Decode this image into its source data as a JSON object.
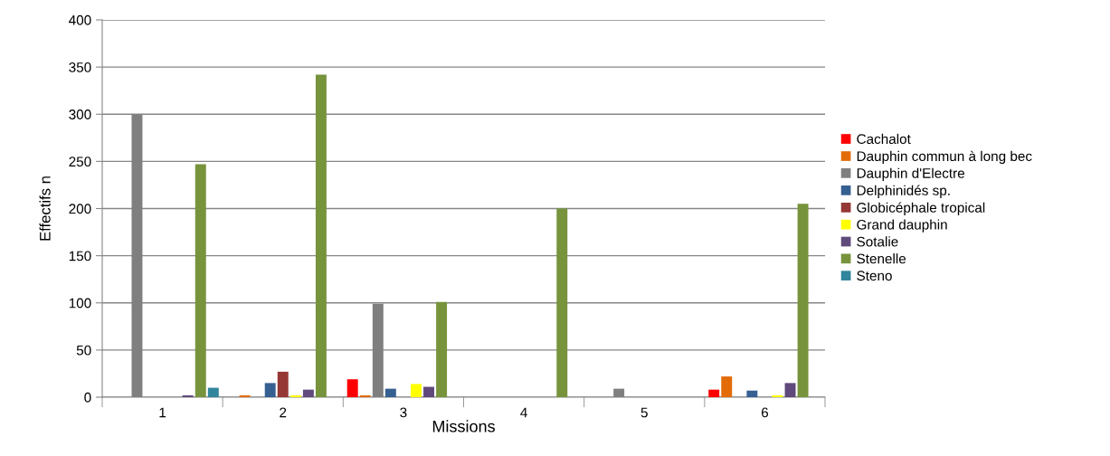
{
  "chart_data": {
    "type": "bar",
    "xlabel": "Missions",
    "ylabel": "Effectifs n",
    "categories": [
      "1",
      "2",
      "3",
      "4",
      "5",
      "6"
    ],
    "series": [
      {
        "name": "Cachalot",
        "color": "#ff0000",
        "values": [
          0,
          0,
          19,
          0,
          0,
          8
        ]
      },
      {
        "name": "Dauphin commun à long bec",
        "color": "#e36c09",
        "values": [
          0,
          2,
          2,
          0,
          0,
          22
        ]
      },
      {
        "name": "Dauphin d'Electre",
        "color": "#7f7f7f",
        "values": [
          300,
          0,
          99,
          0,
          9,
          0
        ]
      },
      {
        "name": "Delphinidés sp.",
        "color": "#376092",
        "values": [
          0,
          15,
          9,
          0,
          0,
          7
        ]
      },
      {
        "name": "Globicéphale tropical",
        "color": "#953735",
        "values": [
          0,
          27,
          0,
          0,
          0,
          0
        ]
      },
      {
        "name": "Grand dauphin",
        "color": "#ffff00",
        "values": [
          0,
          2,
          14,
          0,
          0,
          2
        ]
      },
      {
        "name": "Sotalie",
        "color": "#604a7b",
        "values": [
          2,
          8,
          11,
          0,
          0,
          15
        ]
      },
      {
        "name": "Stenelle",
        "color": "#77933c",
        "values": [
          247,
          342,
          101,
          200,
          0,
          205
        ]
      },
      {
        "name": "Steno",
        "color": "#31859c",
        "values": [
          10,
          0,
          0,
          0,
          0,
          0
        ]
      }
    ],
    "ylim": [
      0,
      400
    ],
    "yticks": [
      0,
      50,
      100,
      150,
      200,
      250,
      300,
      350,
      400
    ],
    "grid": "y",
    "legend": "right"
  }
}
